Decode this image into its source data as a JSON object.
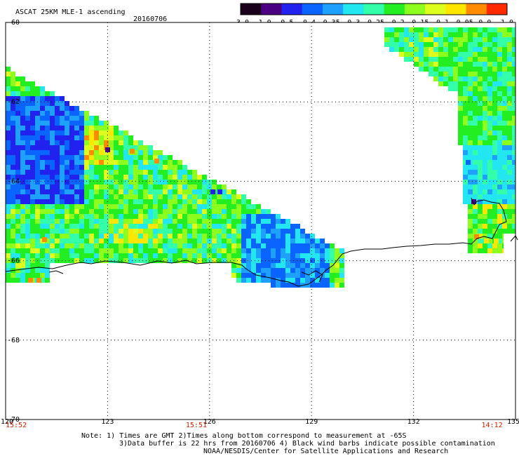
{
  "header": {
    "title": "ASCAT 25KM MLE-1 ascending",
    "date": "20160706"
  },
  "colorbar": {
    "tick_labels": [
      "-3.0",
      "-1.0",
      "-0.5",
      "-0.4",
      "-0.35",
      "-0.3",
      "-0.25",
      "-0.2",
      "-0.15",
      "-0.1",
      "-0.05",
      "0.0",
      "1.0"
    ],
    "colors": [
      "#1a001a",
      "#4b0082",
      "#2222ee",
      "#0a64ff",
      "#1ea0ff",
      "#22e6f0",
      "#33ffaa",
      "#22ee22",
      "#8cff1e",
      "#dcff1e",
      "#ffe600",
      "#ff8c00",
      "#ff2a00"
    ]
  },
  "chart_data": {
    "type": "heatmap",
    "x_ticks": [
      "120",
      "123",
      "126",
      "129",
      "132",
      "135"
    ],
    "y_ticks": [
      "-60",
      "-62",
      "-64",
      "-66",
      "-68",
      "-70"
    ],
    "xlim": [
      120,
      135
    ],
    "ylim": [
      -70,
      -60
    ],
    "grid": true,
    "time_labels": [
      {
        "text": "15:52",
        "lon": 120.0
      },
      {
        "text": "15:51",
        "lon": 125.3
      },
      {
        "text": "14:12",
        "lon": 134.0
      }
    ]
  },
  "notes": {
    "line1": "Note: 1) Times are GMT 2)Times along bottom correspond to measurement at -65S",
    "line2": "3)Data buffer is 22 hrs from 20160706 4) Black wind barbs indicate possible contamination",
    "line3": "NOAA/NESDIS/Center for Satellite Applications and Research"
  }
}
